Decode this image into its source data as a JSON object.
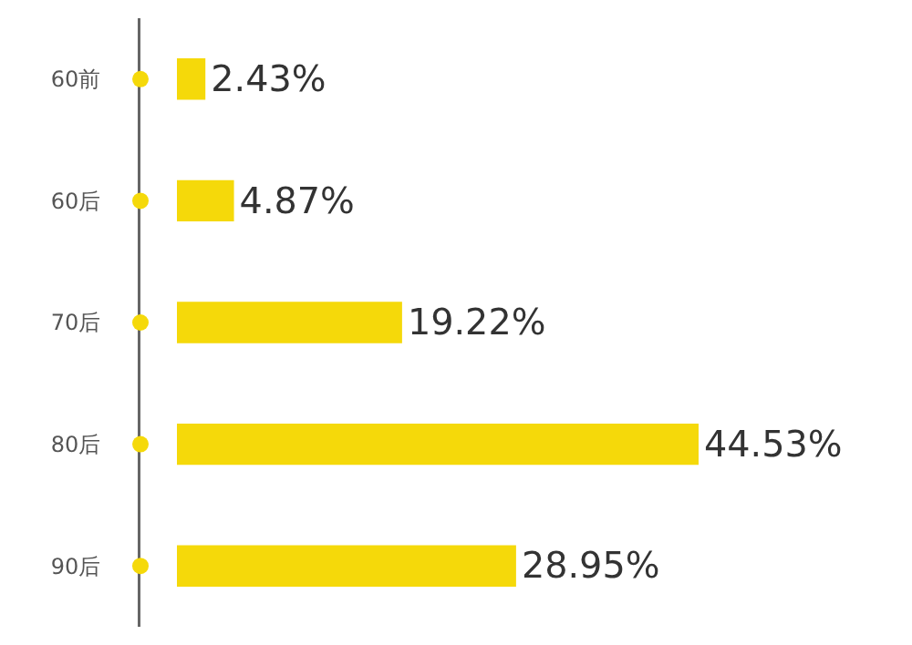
{
  "chart_data": {
    "type": "bar",
    "orientation": "horizontal",
    "categories": [
      "60前",
      "60后",
      "70后",
      "80后",
      "90后"
    ],
    "values": [
      2.43,
      4.87,
      19.22,
      44.53,
      28.95
    ],
    "value_labels": [
      "2.43%",
      "4.87%",
      "19.22%",
      "44.53%",
      "28.95%"
    ],
    "color": "#f5d90a"
  }
}
